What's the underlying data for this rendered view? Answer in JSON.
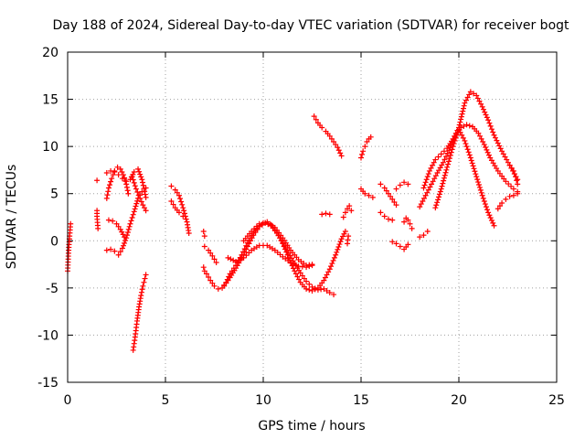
{
  "chart_data": {
    "type": "scatter",
    "title": "Day 188 of 2024, Sidereal Day-to-day VTEC variation (SDTVAR) for receiver bogt",
    "xlabel": "GPS time / hours",
    "ylabel": "SDTVAR / TECUs",
    "xlim": [
      0,
      25
    ],
    "ylim": [
      -15,
      20
    ],
    "xticks": [
      0,
      5,
      10,
      15,
      20,
      25
    ],
    "yticks": [
      -15,
      -10,
      -5,
      0,
      5,
      10,
      15,
      20
    ],
    "grid": true,
    "marker": "+",
    "color": "#ff0000",
    "series": [
      {
        "name": "s1",
        "x": [
          0.0,
          0.05,
          0.1,
          0.15
        ],
        "y": [
          -3.2,
          -1.0,
          0.5,
          1.8
        ]
      },
      {
        "name": "s2",
        "x": [
          1.5
        ],
        "y": [
          6.4
        ]
      },
      {
        "name": "s3",
        "x": [
          1.5,
          1.5,
          1.55
        ],
        "y": [
          3.2,
          2.6,
          1.3
        ]
      },
      {
        "name": "s4",
        "x": [
          2.0,
          2.1,
          2.25,
          2.4,
          2.55,
          2.7,
          2.85,
          3.0,
          3.1
        ],
        "y": [
          4.5,
          5.6,
          6.6,
          7.4,
          7.8,
          7.6,
          7.0,
          6.0,
          5.0
        ]
      },
      {
        "name": "s5",
        "x": [
          2.0,
          2.2,
          2.4,
          2.6,
          2.8,
          3.0,
          3.2,
          3.4,
          3.6,
          3.8,
          4.0
        ],
        "y": [
          7.2,
          7.4,
          7.3,
          7.0,
          6.6,
          6.3,
          6.5,
          7.3,
          7.6,
          6.5,
          4.6
        ]
      },
      {
        "name": "s6",
        "x": [
          2.1,
          2.3,
          2.5,
          2.7,
          2.9
        ],
        "y": [
          2.2,
          2.1,
          1.8,
          1.2,
          0.4
        ]
      },
      {
        "name": "s7",
        "x": [
          2.0,
          2.2,
          2.4,
          2.6,
          2.8,
          3.0,
          3.2,
          3.4,
          3.6,
          3.8,
          4.0
        ],
        "y": [
          -1.0,
          -0.9,
          -1.1,
          -1.5,
          -0.8,
          0.3,
          1.8,
          3.1,
          4.5,
          5.2,
          5.6
        ]
      },
      {
        "name": "s8",
        "x": [
          3.35,
          3.45,
          3.55,
          3.65,
          3.75,
          3.85,
          3.95,
          4.0
        ],
        "y": [
          -11.6,
          -10.2,
          -8.5,
          -7.0,
          -5.8,
          -4.8,
          -4.0,
          -3.6
        ]
      },
      {
        "name": "s9",
        "x": [
          3.3,
          3.5,
          3.7,
          3.85,
          4.0
        ],
        "y": [
          6.8,
          5.5,
          4.5,
          3.8,
          3.2
        ]
      },
      {
        "name": "s10",
        "x": [
          5.3,
          5.5,
          5.7,
          5.9,
          6.1,
          6.2
        ],
        "y": [
          5.8,
          5.4,
          4.8,
          3.5,
          2.0,
          0.8
        ]
      },
      {
        "name": "s11",
        "x": [
          5.3,
          5.5,
          5.7,
          5.9,
          6.05
        ],
        "y": [
          4.2,
          3.5,
          3.0,
          2.6,
          2.3
        ]
      },
      {
        "name": "s12",
        "x": [
          6.95,
          7.0
        ],
        "y": [
          1.0,
          0.5
        ]
      },
      {
        "name": "s13",
        "x": [
          6.95,
          7.0
        ],
        "y": [
          -2.8,
          -3.2
        ]
      },
      {
        "name": "s14",
        "x": [
          7.1,
          7.3,
          7.5,
          7.7,
          7.9,
          8.1,
          8.3,
          8.6,
          8.9,
          9.2,
          9.5,
          9.8,
          10.1,
          10.4,
          10.7,
          11.0,
          11.3,
          11.6,
          11.9,
          12.2,
          12.5,
          12.8,
          13.1,
          13.4,
          13.6
        ],
        "y": [
          -3.5,
          -4.2,
          -4.8,
          -5.1,
          -5.0,
          -4.4,
          -3.5,
          -2.6,
          -1.5,
          -0.2,
          0.8,
          1.6,
          1.9,
          1.6,
          0.8,
          -0.2,
          -1.3,
          -2.4,
          -3.4,
          -4.3,
          -4.9,
          -5.2,
          -5.1,
          -5.5,
          -5.7
        ]
      },
      {
        "name": "s15",
        "x": [
          7.0,
          7.2,
          7.4,
          7.6
        ],
        "y": [
          -0.6,
          -1.0,
          -1.6,
          -2.3
        ]
      },
      {
        "name": "s16",
        "x": [
          8.0,
          8.3,
          8.6,
          8.9,
          9.2,
          9.5,
          9.8,
          10.1,
          10.4,
          10.7,
          11.0,
          11.3,
          11.6,
          11.9,
          12.2,
          12.5,
          12.8,
          13.1,
          13.4,
          13.7,
          14.0,
          14.2
        ],
        "y": [
          -4.8,
          -3.9,
          -2.9,
          -1.8,
          -0.6,
          0.6,
          1.5,
          1.9,
          1.7,
          0.9,
          -0.3,
          -1.8,
          -3.2,
          -4.4,
          -5.1,
          -5.3,
          -5.0,
          -4.2,
          -3.0,
          -1.5,
          0.2,
          1.0
        ]
      },
      {
        "name": "s17",
        "x": [
          9.0,
          9.4,
          9.8,
          10.2,
          10.6,
          11.0,
          11.4,
          11.8,
          12.2,
          12.5
        ],
        "y": [
          0.0,
          1.0,
          1.8,
          2.0,
          1.4,
          0.3,
          -1.0,
          -2.0,
          -2.6,
          -2.5
        ]
      },
      {
        "name": "s18",
        "x": [
          8.2,
          8.6,
          9.0,
          9.4,
          9.8,
          10.2,
          10.6,
          11.0,
          11.4,
          11.8,
          12.2,
          12.5
        ],
        "y": [
          -1.8,
          -2.2,
          -1.8,
          -1.0,
          -0.5,
          -0.5,
          -1.0,
          -1.7,
          -2.3,
          -2.7,
          -2.8,
          -2.6
        ]
      },
      {
        "name": "s19",
        "x": [
          12.6,
          12.8,
          13.0,
          13.2,
          13.4,
          13.6,
          13.8,
          14.0
        ],
        "y": [
          13.2,
          12.5,
          12.0,
          11.6,
          11.1,
          10.5,
          9.9,
          9.0
        ]
      },
      {
        "name": "s20",
        "x": [
          13.0,
          13.2,
          13.4
        ],
        "y": [
          2.8,
          2.9,
          2.8
        ]
      },
      {
        "name": "s21",
        "x": [
          14.1,
          14.2,
          14.3,
          14.4,
          14.5
        ],
        "y": [
          2.5,
          3.0,
          3.4,
          3.7,
          3.2
        ]
      },
      {
        "name": "s22",
        "x": [
          14.3,
          14.35
        ],
        "y": [
          -0.3,
          0.5
        ]
      },
      {
        "name": "s23",
        "x": [
          15.0,
          15.1,
          15.2,
          15.3,
          15.4,
          15.5
        ],
        "y": [
          8.8,
          9.5,
          10.0,
          10.5,
          10.8,
          11.0
        ]
      },
      {
        "name": "s24",
        "x": [
          15.0,
          15.2,
          15.4,
          15.6
        ],
        "y": [
          5.5,
          5.0,
          4.8,
          4.6
        ]
      },
      {
        "name": "s25",
        "x": [
          16.0,
          16.2,
          16.4,
          16.6,
          16.8
        ],
        "y": [
          6.0,
          5.6,
          5.0,
          4.4,
          3.8
        ]
      },
      {
        "name": "s26",
        "x": [
          16.0,
          16.2,
          16.4,
          16.6
        ],
        "y": [
          3.0,
          2.6,
          2.3,
          2.2
        ]
      },
      {
        "name": "s27",
        "x": [
          16.6,
          16.8,
          17.0,
          17.2,
          17.4
        ],
        "y": [
          -0.1,
          -0.3,
          -0.6,
          -0.9,
          -0.4
        ]
      },
      {
        "name": "s28",
        "x": [
          16.8,
          17.0,
          17.2,
          17.4
        ],
        "y": [
          5.5,
          5.9,
          6.2,
          6.0
        ]
      },
      {
        "name": "s29",
        "x": [
          17.2,
          17.3,
          17.4,
          17.5,
          17.6
        ],
        "y": [
          2.0,
          2.4,
          2.2,
          1.8,
          1.3
        ]
      },
      {
        "name": "s30",
        "x": [
          18.0,
          18.2,
          18.4
        ],
        "y": [
          0.4,
          0.6,
          1.0
        ]
      },
      {
        "name": "s31",
        "x": [
          18.0,
          18.3,
          18.6,
          18.9,
          19.2,
          19.5,
          19.8,
          20.1,
          20.4,
          20.7,
          21.0,
          21.3,
          21.6,
          22.0,
          22.4,
          22.8,
          23.0
        ],
        "y": [
          3.6,
          4.8,
          6.0,
          7.2,
          8.3,
          9.6,
          11.0,
          12.0,
          12.3,
          12.1,
          11.4,
          10.2,
          8.8,
          7.4,
          6.3,
          5.5,
          5.2
        ]
      },
      {
        "name": "s32",
        "x": [
          18.2,
          18.5,
          18.8,
          19.1,
          19.4,
          19.7,
          20.0,
          20.3,
          20.6,
          20.9,
          21.2,
          21.5,
          21.8,
          22.2,
          22.6,
          23.0
        ],
        "y": [
          5.6,
          7.4,
          8.6,
          9.2,
          9.8,
          10.8,
          12.0,
          14.6,
          15.8,
          15.4,
          14.2,
          12.8,
          11.2,
          9.5,
          8.0,
          6.5
        ]
      },
      {
        "name": "s33",
        "x": [
          18.8,
          19.1,
          19.4,
          19.7,
          20.0,
          20.3,
          20.6,
          20.9,
          21.2,
          21.5,
          21.8
        ],
        "y": [
          3.5,
          5.5,
          7.8,
          10.0,
          11.8,
          10.6,
          8.8,
          6.8,
          4.8,
          3.0,
          1.6
        ]
      },
      {
        "name": "s34",
        "x": [
          22.0,
          22.2,
          22.4,
          22.6,
          22.8,
          23.0
        ],
        "y": [
          3.4,
          4.0,
          4.4,
          4.7,
          4.8,
          5.0
        ]
      },
      {
        "name": "s35",
        "x": [
          22.6,
          22.8,
          22.9,
          23.0
        ],
        "y": [
          8.0,
          7.4,
          6.8,
          6.0
        ]
      }
    ]
  }
}
